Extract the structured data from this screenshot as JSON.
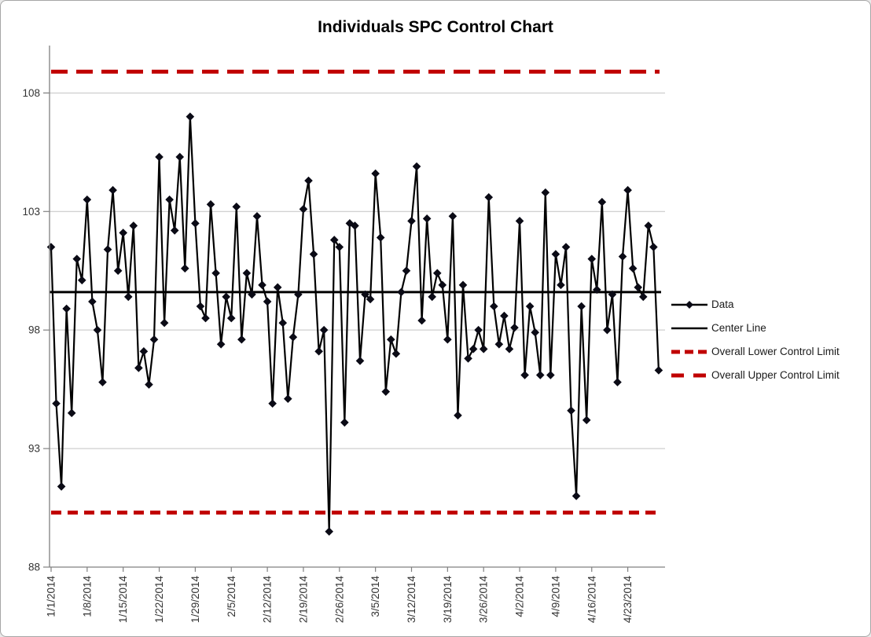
{
  "chart_data": {
    "type": "line",
    "title": "Individuals SPC Control Chart",
    "xlabel": "",
    "ylabel": "",
    "ylim": [
      88,
      110
    ],
    "yticks": [
      88,
      93,
      98,
      103,
      108
    ],
    "xtick_labels": [
      "1/1/2014",
      "1/8/2014",
      "1/15/2014",
      "1/22/2014",
      "1/29/2014",
      "2/5/2014",
      "2/12/2014",
      "2/19/2014",
      "2/26/2014",
      "3/5/2014",
      "3/12/2014",
      "3/19/2014",
      "3/26/2014",
      "4/2/2014",
      "4/9/2014",
      "4/16/2014",
      "4/23/2014"
    ],
    "xtick_every": 7,
    "grid": "horizontal",
    "legend_position": "right",
    "center_line": 99.6,
    "upper_control_limit": 108.9,
    "lower_control_limit": 90.3,
    "dates": [
      "1/1/2014",
      "1/2/2014",
      "1/3/2014",
      "1/4/2014",
      "1/5/2014",
      "1/6/2014",
      "1/7/2014",
      "1/8/2014",
      "1/9/2014",
      "1/10/2014",
      "1/11/2014",
      "1/12/2014",
      "1/13/2014",
      "1/14/2014",
      "1/15/2014",
      "1/16/2014",
      "1/17/2014",
      "1/18/2014",
      "1/19/2014",
      "1/20/2014",
      "1/21/2014",
      "1/22/2014",
      "1/23/2014",
      "1/24/2014",
      "1/25/2014",
      "1/26/2014",
      "1/27/2014",
      "1/28/2014",
      "1/29/2014",
      "1/30/2014",
      "1/31/2014",
      "2/1/2014",
      "2/2/2014",
      "2/3/2014",
      "2/4/2014",
      "2/5/2014",
      "2/6/2014",
      "2/7/2014",
      "2/8/2014",
      "2/9/2014",
      "2/10/2014",
      "2/11/2014",
      "2/12/2014",
      "2/13/2014",
      "2/14/2014",
      "2/15/2014",
      "2/16/2014",
      "2/17/2014",
      "2/18/2014",
      "2/19/2014",
      "2/20/2014",
      "2/21/2014",
      "2/22/2014",
      "2/23/2014",
      "2/24/2014",
      "2/25/2014",
      "2/26/2014",
      "2/27/2014",
      "2/28/2014",
      "3/1/2014",
      "3/2/2014",
      "3/3/2014",
      "3/4/2014",
      "3/5/2014",
      "3/6/2014",
      "3/7/2014",
      "3/8/2014",
      "3/9/2014",
      "3/10/2014",
      "3/11/2014",
      "3/12/2014",
      "3/13/2014",
      "3/14/2014",
      "3/15/2014",
      "3/16/2014",
      "3/17/2014",
      "3/18/2014",
      "3/19/2014",
      "3/20/2014",
      "3/21/2014",
      "3/22/2014",
      "3/23/2014",
      "3/24/2014",
      "3/25/2014",
      "3/26/2014",
      "3/27/2014",
      "3/28/2014",
      "3/29/2014",
      "3/30/2014",
      "3/31/2014",
      "4/1/2014",
      "4/2/2014",
      "4/3/2014",
      "4/4/2014",
      "4/5/2014",
      "4/6/2014",
      "4/7/2014",
      "4/8/2014",
      "4/9/2014",
      "4/10/2014",
      "4/11/2014",
      "4/12/2014",
      "4/13/2014",
      "4/14/2014",
      "4/15/2014",
      "4/16/2014",
      "4/17/2014",
      "4/18/2014",
      "4/19/2014",
      "4/20/2014",
      "4/21/2014",
      "4/22/2014",
      "4/23/2014",
      "4/24/2014",
      "4/25/2014",
      "4/26/2014",
      "4/27/2014",
      "4/28/2014",
      "4/29/2014"
    ],
    "values": [
      101.5,
      94.9,
      91.4,
      98.9,
      94.5,
      101.0,
      100.1,
      103.5,
      99.2,
      98.0,
      95.8,
      101.4,
      103.9,
      100.5,
      102.1,
      99.4,
      102.4,
      96.4,
      97.1,
      95.7,
      97.6,
      105.3,
      98.3,
      103.5,
      102.2,
      105.3,
      100.6,
      107.0,
      102.5,
      99.0,
      98.5,
      103.3,
      100.4,
      97.4,
      99.4,
      98.5,
      103.2,
      97.6,
      100.4,
      99.5,
      102.8,
      99.9,
      99.2,
      94.9,
      99.8,
      98.3,
      95.1,
      97.7,
      99.5,
      103.1,
      104.3,
      101.2,
      97.1,
      98.0,
      89.5,
      101.8,
      101.5,
      94.1,
      102.5,
      102.4,
      96.7,
      99.5,
      99.3,
      104.6,
      101.9,
      95.4,
      97.6,
      97.0,
      99.6,
      100.5,
      102.6,
      104.9,
      98.4,
      102.7,
      99.4,
      100.4,
      99.9,
      97.6,
      102.8,
      94.4,
      99.9,
      96.8,
      97.2,
      98.0,
      97.2,
      103.6,
      99.0,
      97.4,
      98.6,
      97.2,
      98.1,
      102.6,
      96.1,
      99.0,
      97.9,
      96.1,
      103.8,
      96.1,
      101.2,
      99.9,
      101.5,
      94.6,
      91.0,
      99.0,
      94.2,
      101.0,
      99.7,
      103.4,
      98.0,
      99.5,
      95.8,
      101.1,
      103.9,
      100.6,
      99.8,
      99.4,
      102.4,
      101.5,
      96.3
    ],
    "legend": [
      {
        "label": "Data",
        "type": "line-marker",
        "color": "#000000"
      },
      {
        "label": "Center Line",
        "type": "line",
        "color": "#000000"
      },
      {
        "label": "Overall Lower Control Limit",
        "type": "dash-short",
        "color": "#c00000"
      },
      {
        "label": "Overall Upper Control Limit",
        "type": "dash-long",
        "color": "#c00000"
      }
    ],
    "colors": {
      "series_line": "#000000",
      "marker": "#0b0b16",
      "control_limit": "#c00000",
      "gridline": "#c3c3c3",
      "axis": "#808080",
      "tick_label": "#333333",
      "background": "#ffffff",
      "border": "#a6a6a6"
    }
  }
}
